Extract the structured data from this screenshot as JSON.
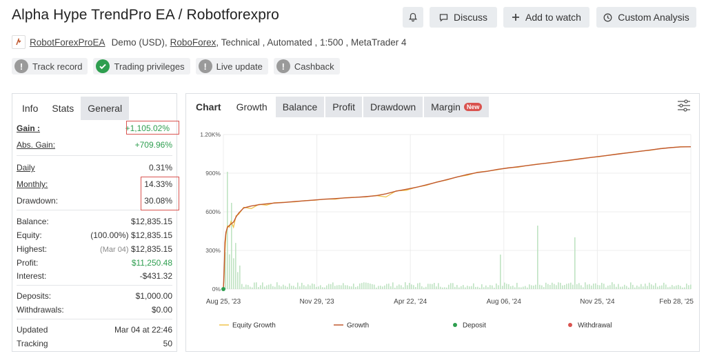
{
  "header": {
    "title": "Alpha Hype TrendPro EA / Robotforexpro",
    "buttons": {
      "discuss": "Discuss",
      "watch": "Add to watch",
      "analysis": "Custom Analysis"
    }
  },
  "meta": {
    "author": "RobotForexProEA",
    "account": "Demo (USD),",
    "broker": "RoboForex",
    "rest": ", Technical , Automated , 1:500 , MetaTrader 4"
  },
  "badges": [
    {
      "label": "Track record",
      "status": "unknown"
    },
    {
      "label": "Trading privileges",
      "status": "ok"
    },
    {
      "label": "Live update",
      "status": "unknown"
    },
    {
      "label": "Cashback",
      "status": "unknown"
    }
  ],
  "left_tabs": [
    "Info",
    "Stats",
    "General"
  ],
  "stats": {
    "gain": {
      "label": "Gain :",
      "value": "+1,105.02%"
    },
    "abs_gain": {
      "label": "Abs. Gain:",
      "value": "+709.96%"
    },
    "daily": {
      "label": "Daily",
      "value": "0.31%"
    },
    "monthly": {
      "label": "Monthly:",
      "value": "14.33%"
    },
    "drawdown": {
      "label": "Drawdown:",
      "value": "30.08%"
    },
    "balance": {
      "label": "Balance:",
      "value": "$12,835.15"
    },
    "equity": {
      "label": "Equity:",
      "pct": "(100.00%)",
      "value": "$12,835.15"
    },
    "highest": {
      "label": "Highest:",
      "date": "(Mar 04)",
      "value": "$12,835.15"
    },
    "profit": {
      "label": "Profit:",
      "value": "$11,250.48"
    },
    "interest": {
      "label": "Interest:",
      "value": "-$431.32"
    },
    "deposits": {
      "label": "Deposits:",
      "value": "$1,000.00"
    },
    "withdrawals": {
      "label": "Withdrawals:",
      "value": "$0.00"
    },
    "updated": {
      "label": "Updated",
      "value": "Mar 04 at 22:46"
    },
    "tracking": {
      "label": "Tracking",
      "value": "50"
    }
  },
  "chart_tabs": {
    "chart": "Chart",
    "growth": "Growth",
    "balance": "Balance",
    "profit": "Profit",
    "drawdown": "Drawdown",
    "margin": "Margin",
    "new_badge": "New"
  },
  "colors": {
    "equity": "#f0c24a",
    "growth": "#c0582e",
    "deposit": "#2e9e4f",
    "withdrawal": "#d9534f",
    "volume": "#bfe3c2",
    "highlight": "#d9534f"
  },
  "chart_data": {
    "type": "line",
    "y_ticks": [
      "0%",
      "300%",
      "600%",
      "900%",
      "1.20K%"
    ],
    "ylim": [
      0,
      1200
    ],
    "x_ticks": [
      "Aug 25, '23",
      "Nov 29, '23",
      "Apr 22, '24",
      "Aug 06, '24",
      "Nov 25, '24",
      "Feb 28, '25"
    ],
    "legend": [
      "Equity Growth",
      "Growth",
      "Deposit",
      "Withdrawal"
    ],
    "series": [
      {
        "name": "Growth",
        "x": [
          0,
          1,
          2,
          3,
          5,
          8,
          12,
          15,
          20,
          25,
          30,
          40,
          55,
          70,
          85,
          100,
          120,
          140,
          160,
          180,
          200,
          220,
          240,
          260,
          280,
          300,
          320,
          340,
          360,
          380,
          400,
          420,
          440,
          460,
          480,
          500,
          520,
          540,
          560,
          580,
          600,
          620,
          640,
          660,
          680,
          700,
          720,
          740,
          760,
          780,
          800,
          820,
          840,
          860,
          880,
          900,
          920
        ],
        "y": [
          0,
          90,
          220,
          360,
          440,
          480,
          495,
          505,
          520,
          560,
          590,
          630,
          645,
          655,
          662,
          668,
          673,
          680,
          685,
          692,
          698,
          703,
          708,
          712,
          718,
          725,
          740,
          760,
          775,
          790,
          810,
          830,
          850,
          870,
          890,
          905,
          915,
          930,
          940,
          950,
          960,
          970,
          980,
          990,
          1000,
          1010,
          1020,
          1030,
          1040,
          1050,
          1060,
          1070,
          1080,
          1090,
          1098,
          1104,
          1105
        ],
        "equity_offset": [
          0,
          -30,
          -60,
          -80,
          -20,
          10,
          -15,
          20,
          -40,
          10,
          -10,
          5,
          -20,
          3,
          -10,
          2,
          1,
          -3,
          2,
          -2,
          1,
          -5,
          2,
          1,
          -3,
          2,
          -25,
          3,
          -8,
          1,
          -4,
          2,
          -3,
          1,
          -6,
          2,
          1,
          -3,
          2,
          -4,
          1,
          2,
          -2,
          1,
          -3,
          2,
          1,
          -2,
          1,
          2,
          -1,
          1,
          -2,
          1,
          0,
          1,
          0
        ]
      }
    ],
    "deposits": [
      {
        "x": 0,
        "y": 0
      }
    ],
    "withdrawals": []
  }
}
